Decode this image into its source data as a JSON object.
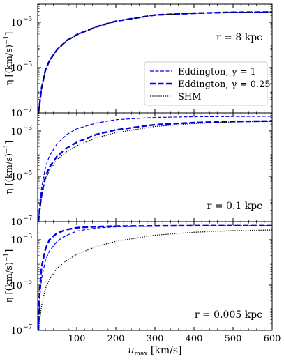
{
  "chart_data": {
    "type": "line",
    "x_range": [
      0,
      600
    ],
    "x_ticks": [
      100,
      200,
      300,
      400,
      500,
      600
    ],
    "x_tick_labels": [
      "100",
      "200",
      "300",
      "400",
      "500",
      "600"
    ],
    "xlabel_main": "u",
    "xlabel_sub": "max",
    "xlabel_units": " [km/s]",
    "y_scale": "log",
    "y_range_log10": [
      -7,
      -2.2
    ],
    "y_ticks_log10": [
      -7,
      -5,
      -3
    ],
    "y_tick_labels": [
      "10",
      "10",
      "10"
    ],
    "y_tick_exponents": [
      "−7",
      "−5",
      "−3"
    ],
    "ylabel_symbol": "η",
    "ylabel_units": "[(km/s)",
    "ylabel_exp": "−1",
    "ylabel_close": "]",
    "colors": {
      "eddington": "#0000ee",
      "shm": "#000000"
    },
    "legend": {
      "position": "lower-right",
      "entries": [
        {
          "label": "Eddington, γ = 1",
          "style": "thin-dashed",
          "color": "#0000ee"
        },
        {
          "label": "Eddington, γ = 0.25",
          "style": "thick-dashed",
          "color": "#0000ee"
        },
        {
          "label": "SHM",
          "style": "dotted",
          "color": "#000000"
        }
      ]
    },
    "panels": [
      {
        "label": "r = 8 kpc",
        "series": [
          {
            "name": "Eddington, γ = 1",
            "style": "thin-dashed",
            "x": [
              2,
              5,
              10,
              20,
              30,
              50,
              75,
              100,
              150,
              200,
              300,
              400,
              500,
              600
            ],
            "log10_y": [
              -7.0,
              -6.6,
              -5.9,
              -5.1,
              -4.7,
              -4.2,
              -3.8,
              -3.55,
              -3.2,
              -2.95,
              -2.68,
              -2.6,
              -2.56,
              -2.55
            ]
          },
          {
            "name": "Eddington, γ = 0.25",
            "style": "thick-dashed",
            "x": [
              2,
              5,
              10,
              20,
              30,
              50,
              75,
              100,
              150,
              200,
              300,
              400,
              500,
              600
            ],
            "log10_y": [
              -7.0,
              -6.6,
              -5.9,
              -5.1,
              -4.7,
              -4.2,
              -3.8,
              -3.55,
              -3.2,
              -2.95,
              -2.68,
              -2.6,
              -2.56,
              -2.55
            ]
          },
          {
            "name": "SHM",
            "style": "dotted",
            "x": [
              2,
              5,
              10,
              20,
              30,
              50,
              75,
              100,
              150,
              200,
              300,
              400,
              500,
              600
            ],
            "log10_y": [
              -7.0,
              -6.6,
              -5.9,
              -5.1,
              -4.7,
              -4.2,
              -3.8,
              -3.55,
              -3.2,
              -2.95,
              -2.68,
              -2.6,
              -2.56,
              -2.55
            ]
          }
        ]
      },
      {
        "label": "r = 0.1 kpc",
        "series": [
          {
            "name": "Eddington, γ = 1",
            "style": "thin-dashed",
            "x": [
              2,
              5,
              10,
              20,
              30,
              50,
              75,
              100,
              150,
              200,
              300,
              400,
              500,
              600
            ],
            "log10_y": [
              -7.0,
              -6.3,
              -5.5,
              -4.6,
              -4.1,
              -3.55,
              -3.15,
              -2.9,
              -2.65,
              -2.5,
              -2.4,
              -2.37,
              -2.36,
              -2.35
            ]
          },
          {
            "name": "Eddington, γ = 0.25",
            "style": "thick-dashed",
            "x": [
              2,
              5,
              10,
              20,
              30,
              50,
              75,
              100,
              150,
              200,
              300,
              400,
              500,
              600
            ],
            "log10_y": [
              -7.0,
              -6.5,
              -5.8,
              -5.0,
              -4.6,
              -4.1,
              -3.75,
              -3.5,
              -3.15,
              -2.95,
              -2.72,
              -2.63,
              -2.58,
              -2.56
            ]
          },
          {
            "name": "SHM",
            "style": "dotted",
            "x": [
              2,
              5,
              10,
              20,
              30,
              50,
              75,
              100,
              150,
              200,
              300,
              400,
              500,
              600
            ],
            "log10_y": [
              -7.0,
              -6.6,
              -5.9,
              -5.15,
              -4.75,
              -4.25,
              -3.9,
              -3.65,
              -3.3,
              -3.07,
              -2.8,
              -2.67,
              -2.6,
              -2.57
            ]
          }
        ]
      },
      {
        "label": "r = 0.005 kpc",
        "series": [
          {
            "name": "Eddington, γ = 1",
            "style": "thin-dashed",
            "x": [
              2,
              5,
              10,
              20,
              30,
              50,
              75,
              100,
              150,
              200,
              300,
              400,
              500,
              600
            ],
            "log10_y": [
              -7.0,
              -5.6,
              -4.7,
              -3.9,
              -3.5,
              -3.05,
              -2.8,
              -2.62,
              -2.48,
              -2.43,
              -2.4,
              -2.39,
              -2.38,
              -2.38
            ]
          },
          {
            "name": "Eddington, γ = 0.25",
            "style": "thick-dashed",
            "x": [
              2,
              5,
              10,
              20,
              30,
              50,
              75,
              100,
              150,
              200,
              300,
              400,
              500,
              600
            ],
            "log10_y": [
              -7.0,
              -5.2,
              -4.2,
              -3.4,
              -3.0,
              -2.7,
              -2.55,
              -2.47,
              -2.42,
              -2.4,
              -2.39,
              -2.38,
              -2.38,
              -2.38
            ]
          },
          {
            "name": "SHM",
            "style": "dotted",
            "x": [
              2,
              5,
              10,
              20,
              30,
              50,
              75,
              100,
              150,
              200,
              300,
              400,
              500,
              600
            ],
            "log10_y": [
              -7.0,
              -6.6,
              -5.9,
              -5.15,
              -4.75,
              -4.25,
              -3.9,
              -3.65,
              -3.3,
              -3.07,
              -2.8,
              -2.67,
              -2.6,
              -2.57
            ]
          }
        ]
      }
    ]
  }
}
